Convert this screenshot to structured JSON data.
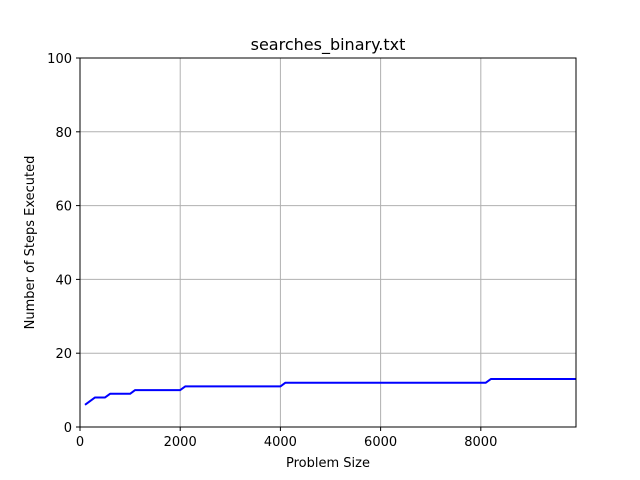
{
  "chart_data": {
    "type": "line",
    "title": "searches_binary.txt",
    "xlabel": "Problem Size",
    "ylabel": "Number of Steps Executed",
    "xlim": [
      0,
      9900
    ],
    "ylim": [
      0,
      100
    ],
    "xticks": [
      0,
      2000,
      4000,
      6000,
      8000
    ],
    "yticks": [
      0,
      20,
      40,
      60,
      80,
      100
    ],
    "grid": true,
    "series": [
      {
        "color": "#0000ff",
        "x": [
          100,
          300,
          500,
          600,
          1000,
          1100,
          2000,
          2100,
          4000,
          4100,
          8100,
          8200,
          9900
        ],
        "y": [
          6,
          8,
          8,
          9,
          9,
          10,
          10,
          11,
          11,
          12,
          12,
          13,
          13
        ]
      }
    ]
  }
}
